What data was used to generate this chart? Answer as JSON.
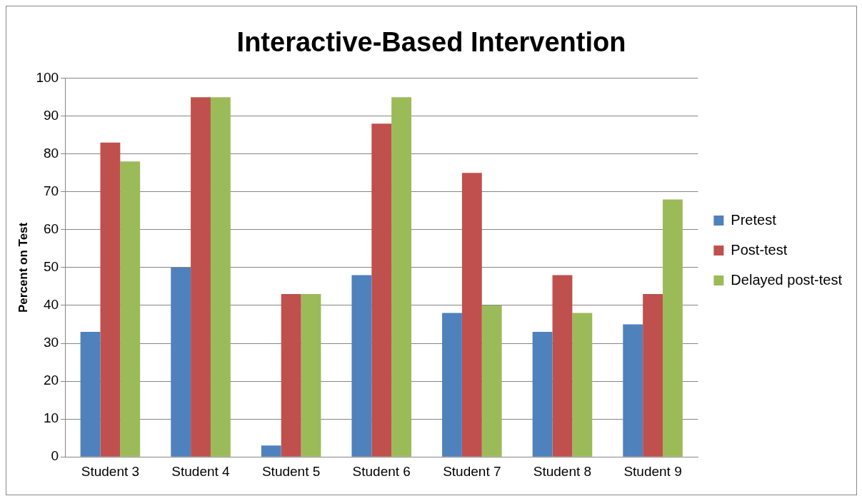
{
  "chart_data": {
    "type": "bar",
    "title": "Interactive-Based Intervention",
    "ylabel": "Percent on Test",
    "categories": [
      "Student 3",
      "Student 4",
      "Student 5",
      "Student 6",
      "Student 7",
      "Student 8",
      "Student 9"
    ],
    "series": [
      {
        "name": "Pretest",
        "color": "#4f81bd",
        "values": [
          33,
          50,
          3,
          48,
          38,
          33,
          35
        ]
      },
      {
        "name": "Post-test",
        "color": "#c0504d",
        "values": [
          83,
          95,
          43,
          88,
          75,
          48,
          43
        ]
      },
      {
        "name": "Delayed post-test",
        "color": "#9bbb59",
        "values": [
          78,
          95,
          43,
          95,
          40,
          38,
          68
        ]
      }
    ],
    "ylim": [
      0,
      100
    ],
    "yticks": [
      0,
      10,
      20,
      30,
      40,
      50,
      60,
      70,
      80,
      90,
      100
    ],
    "grid": "y",
    "legend": "right"
  }
}
